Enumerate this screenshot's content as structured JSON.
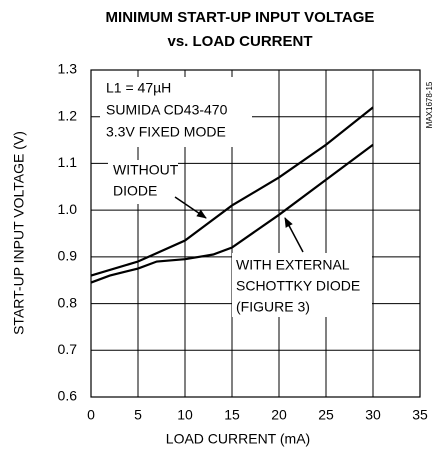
{
  "chart_data": {
    "type": "line",
    "title": [
      "MINIMUM START-UP INPUT VOLTAGE",
      "vs. LOAD CURRENT"
    ],
    "x_label": "LOAD CURRENT (mA)",
    "y_label": "START-UP INPUT VOLTAGE (V)",
    "side_note": "MAX1678-15",
    "box_note": [
      "L1 = 47µH",
      "SUMIDA CD43-470",
      "3.3V FIXED MODE"
    ],
    "annotations": [
      [
        "WITHOUT",
        "DIODE"
      ],
      [
        "WITH EXTERNAL",
        "SCHOTTKY DIODE",
        "(FIGURE 3)"
      ]
    ],
    "series": [
      {
        "color": "#000000",
        "x": [
          0,
          5,
          10,
          12,
          15,
          20,
          25,
          30
        ],
        "values": [
          0.86,
          0.89,
          0.935,
          0.965,
          1.01,
          1.07,
          1.14,
          1.22
        ]
      },
      {
        "color": "#000000",
        "x": [
          0,
          2,
          5,
          7,
          10,
          13,
          15,
          20,
          25,
          30
        ],
        "values": [
          0.845,
          0.86,
          0.875,
          0.89,
          0.895,
          0.905,
          0.92,
          0.99,
          1.065,
          1.14
        ]
      }
    ],
    "xlim": [
      0,
      35
    ],
    "xticks": [
      0,
      5,
      10,
      15,
      20,
      25,
      30,
      35
    ],
    "ylim": [
      0.6,
      1.3
    ],
    "yticks": [
      0.6,
      0.7,
      0.8,
      0.9,
      {
        "value": 1,
        "label": "1.0"
      },
      1.1,
      1.2,
      1.3
    ],
    "grid": true
  }
}
